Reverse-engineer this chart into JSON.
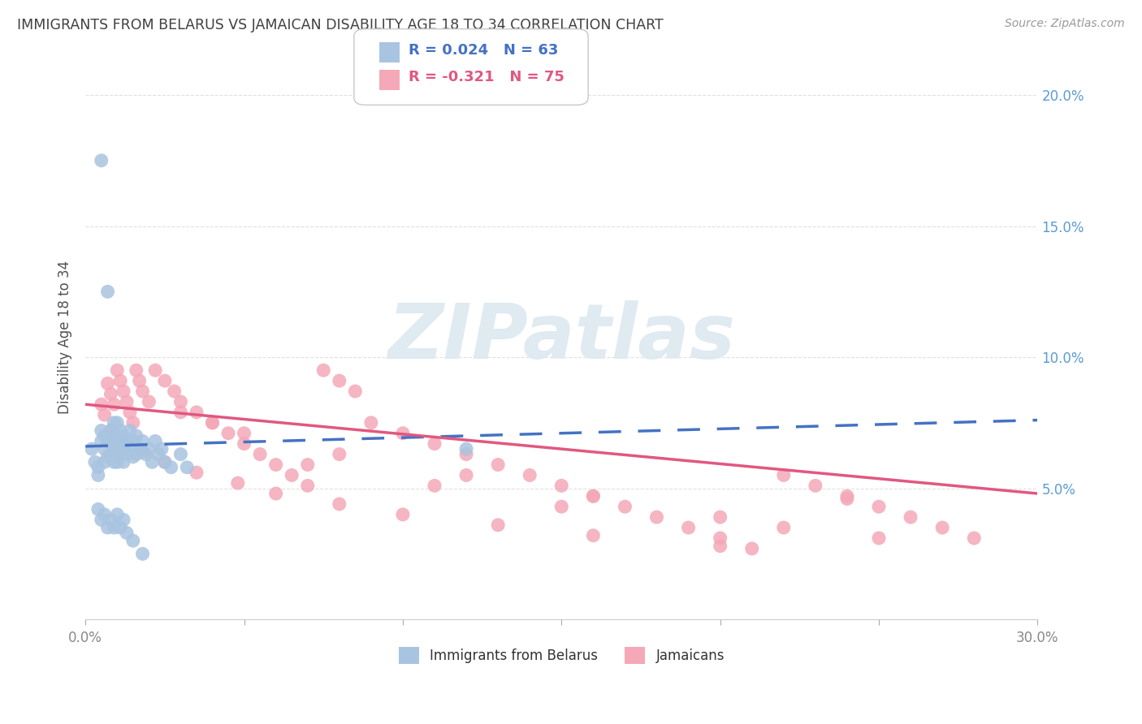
{
  "title": "IMMIGRANTS FROM BELARUS VS JAMAICAN DISABILITY AGE 18 TO 34 CORRELATION CHART",
  "source": "Source: ZipAtlas.com",
  "ylabel": "Disability Age 18 to 34",
  "xlim": [
    0.0,
    0.3
  ],
  "ylim": [
    0.0,
    0.215
  ],
  "xticks": [
    0.0,
    0.05,
    0.1,
    0.15,
    0.2,
    0.25,
    0.3
  ],
  "xticklabels": [
    "0.0%",
    "",
    "",
    "",
    "",
    "",
    "30.0%"
  ],
  "yticks": [
    0.0,
    0.05,
    0.1,
    0.15,
    0.2
  ],
  "yticklabels_right": [
    "",
    "5.0%",
    "10.0%",
    "15.0%",
    "20.0%"
  ],
  "R_belarus": 0.024,
  "N_belarus": 63,
  "R_jamaican": -0.321,
  "N_jamaican": 75,
  "color_belarus": "#a8c4e0",
  "color_jamaican": "#f4a8b8",
  "color_trend_belarus": "#4472c4",
  "color_trend_jamaican": "#e05880",
  "color_title": "#404040",
  "color_source": "#999999",
  "color_right_axis": "#5b9bd5",
  "color_grid": "#e0e0e0",
  "watermark": "ZIPatlas",
  "watermark_color": "#dce8f0",
  "legend_label_belarus": "Immigrants from Belarus",
  "legend_label_jamaican": "Jamaicans",
  "belarus_x": [
    0.002,
    0.003,
    0.004,
    0.004,
    0.005,
    0.005,
    0.005,
    0.006,
    0.006,
    0.006,
    0.007,
    0.007,
    0.007,
    0.008,
    0.008,
    0.008,
    0.009,
    0.009,
    0.009,
    0.009,
    0.01,
    0.01,
    0.01,
    0.01,
    0.011,
    0.011,
    0.011,
    0.012,
    0.012,
    0.012,
    0.013,
    0.013,
    0.014,
    0.014,
    0.015,
    0.015,
    0.016,
    0.016,
    0.017,
    0.018,
    0.019,
    0.02,
    0.021,
    0.022,
    0.023,
    0.024,
    0.025,
    0.027,
    0.03,
    0.032,
    0.004,
    0.005,
    0.006,
    0.007,
    0.008,
    0.009,
    0.01,
    0.011,
    0.012,
    0.013,
    0.015,
    0.018,
    0.12
  ],
  "belarus_y": [
    0.065,
    0.06,
    0.058,
    0.055,
    0.175,
    0.072,
    0.068,
    0.07,
    0.065,
    0.06,
    0.125,
    0.068,
    0.062,
    0.072,
    0.068,
    0.063,
    0.075,
    0.07,
    0.065,
    0.06,
    0.075,
    0.07,
    0.065,
    0.06,
    0.072,
    0.068,
    0.063,
    0.07,
    0.065,
    0.06,
    0.068,
    0.063,
    0.072,
    0.065,
    0.068,
    0.062,
    0.07,
    0.063,
    0.065,
    0.068,
    0.063,
    0.065,
    0.06,
    0.068,
    0.063,
    0.065,
    0.06,
    0.058,
    0.063,
    0.058,
    0.042,
    0.038,
    0.04,
    0.035,
    0.038,
    0.035,
    0.04,
    0.035,
    0.038,
    0.033,
    0.03,
    0.025,
    0.065
  ],
  "jamaican_x": [
    0.005,
    0.006,
    0.007,
    0.008,
    0.009,
    0.01,
    0.011,
    0.012,
    0.013,
    0.014,
    0.015,
    0.016,
    0.017,
    0.018,
    0.02,
    0.022,
    0.025,
    0.028,
    0.03,
    0.035,
    0.04,
    0.045,
    0.05,
    0.055,
    0.06,
    0.065,
    0.07,
    0.075,
    0.08,
    0.085,
    0.09,
    0.1,
    0.11,
    0.12,
    0.13,
    0.14,
    0.15,
    0.16,
    0.17,
    0.18,
    0.19,
    0.2,
    0.21,
    0.22,
    0.23,
    0.24,
    0.25,
    0.26,
    0.27,
    0.28,
    0.008,
    0.012,
    0.018,
    0.025,
    0.035,
    0.048,
    0.06,
    0.08,
    0.1,
    0.13,
    0.16,
    0.2,
    0.24,
    0.03,
    0.05,
    0.08,
    0.12,
    0.16,
    0.2,
    0.25,
    0.04,
    0.07,
    0.11,
    0.15,
    0.22
  ],
  "jamaican_y": [
    0.082,
    0.078,
    0.09,
    0.086,
    0.082,
    0.095,
    0.091,
    0.087,
    0.083,
    0.079,
    0.075,
    0.095,
    0.091,
    0.087,
    0.083,
    0.095,
    0.091,
    0.087,
    0.083,
    0.079,
    0.075,
    0.071,
    0.067,
    0.063,
    0.059,
    0.055,
    0.051,
    0.095,
    0.091,
    0.087,
    0.075,
    0.071,
    0.067,
    0.063,
    0.059,
    0.055,
    0.051,
    0.047,
    0.043,
    0.039,
    0.035,
    0.031,
    0.027,
    0.055,
    0.051,
    0.047,
    0.043,
    0.039,
    0.035,
    0.031,
    0.072,
    0.068,
    0.064,
    0.06,
    0.056,
    0.052,
    0.048,
    0.044,
    0.04,
    0.036,
    0.032,
    0.028,
    0.046,
    0.079,
    0.071,
    0.063,
    0.055,
    0.047,
    0.039,
    0.031,
    0.075,
    0.059,
    0.051,
    0.043,
    0.035
  ],
  "trend_belarus_x0": 0.0,
  "trend_belarus_x1": 0.3,
  "trend_belarus_y0": 0.066,
  "trend_belarus_y1": 0.076,
  "trend_jamaican_x0": 0.0,
  "trend_jamaican_x1": 0.3,
  "trend_jamaican_y0": 0.082,
  "trend_jamaican_y1": 0.048
}
